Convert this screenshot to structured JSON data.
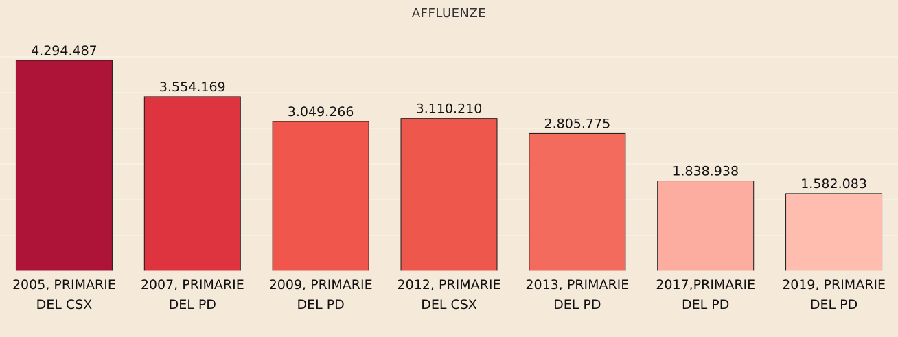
{
  "chart_data": {
    "type": "bar",
    "title": "AFFLUENZE",
    "xlabel": "",
    "ylabel": "",
    "categories": [
      [
        "2005, PRIMARIE",
        "DEL CSX"
      ],
      [
        "2007, PRIMARIE",
        "DEL PD"
      ],
      [
        "2009, PRIMARIE",
        "DEL PD"
      ],
      [
        "2012, PRIMARIE",
        "DEL CSX"
      ],
      [
        "2013, PRIMARIE",
        "DEL PD"
      ],
      [
        "2017,PRIMARIE",
        "DEL PD"
      ],
      [
        "2019, PRIMARIE",
        "DEL PD"
      ]
    ],
    "values": [
      4294487,
      3554169,
      3049266,
      3110210,
      2805775,
      1838938,
      1582083
    ],
    "value_labels": [
      "4.294.487",
      "3.554.169",
      "3.049.266",
      "3.110.210",
      "2.805.775",
      "1.838.938",
      "1.582.083"
    ],
    "bar_colors": [
      "#ad1438",
      "#de3440",
      "#f0564c",
      "#ee584c",
      "#f26b5c",
      "#fdaca0",
      "#ffbdb0"
    ],
    "ylim": [
      0,
      4294487
    ],
    "grid": true,
    "legend": "none"
  },
  "colors": {
    "background": "#f5eada",
    "text": "#111111"
  }
}
